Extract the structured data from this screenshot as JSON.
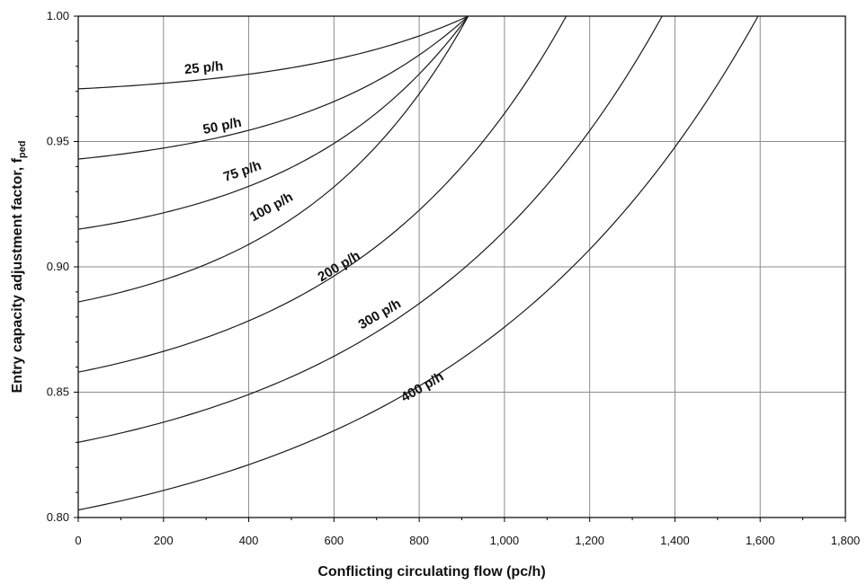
{
  "chart_data": {
    "type": "line",
    "xlabel": "Conflicting circulating flow (pc/h)",
    "ylabel": {
      "main": "Entry capacity adjustment factor, f",
      "subscript": "ped"
    },
    "xlim": [
      0,
      1800
    ],
    "ylim": [
      0.8,
      1.0
    ],
    "x_ticks": [
      0,
      200,
      400,
      600,
      800,
      1000,
      1200,
      1400,
      1600,
      1800
    ],
    "x_tick_labels": [
      "0",
      "200",
      "400",
      "600",
      "800",
      "1,000",
      "1,200",
      "1,400",
      "1,600",
      "1,800"
    ],
    "y_ticks": [
      0.8,
      0.85,
      0.9,
      0.95,
      1.0
    ],
    "y_tick_labels": [
      "0.80",
      "0.85",
      "0.90",
      "0.95",
      "1.00"
    ],
    "grid": true,
    "series": [
      {
        "name": "25 p/h",
        "x_end": 915,
        "y_at_0": 0.971,
        "label_x": 250,
        "label_y": 0.977
      },
      {
        "name": "50 p/h",
        "x_end": 915,
        "y_at_0": 0.943,
        "label_x": 295,
        "label_y": 0.953
      },
      {
        "name": "75 p/h",
        "x_end": 915,
        "y_at_0": 0.915,
        "label_x": 345,
        "label_y": 0.934
      },
      {
        "name": "100 p/h",
        "x_end": 915,
        "y_at_0": 0.886,
        "label_x": 410,
        "label_y": 0.918
      },
      {
        "name": "200 p/h",
        "x_end": 1145,
        "y_at_0": 0.858,
        "label_x": 570,
        "label_y": 0.894
      },
      {
        "name": "300 p/h",
        "x_end": 1370,
        "y_at_0": 0.83,
        "label_x": 665,
        "label_y": 0.875
      },
      {
        "name": "400 p/h",
        "x_end": 1595,
        "y_at_0": 0.803,
        "label_x": 765,
        "label_y": 0.846
      }
    ]
  }
}
